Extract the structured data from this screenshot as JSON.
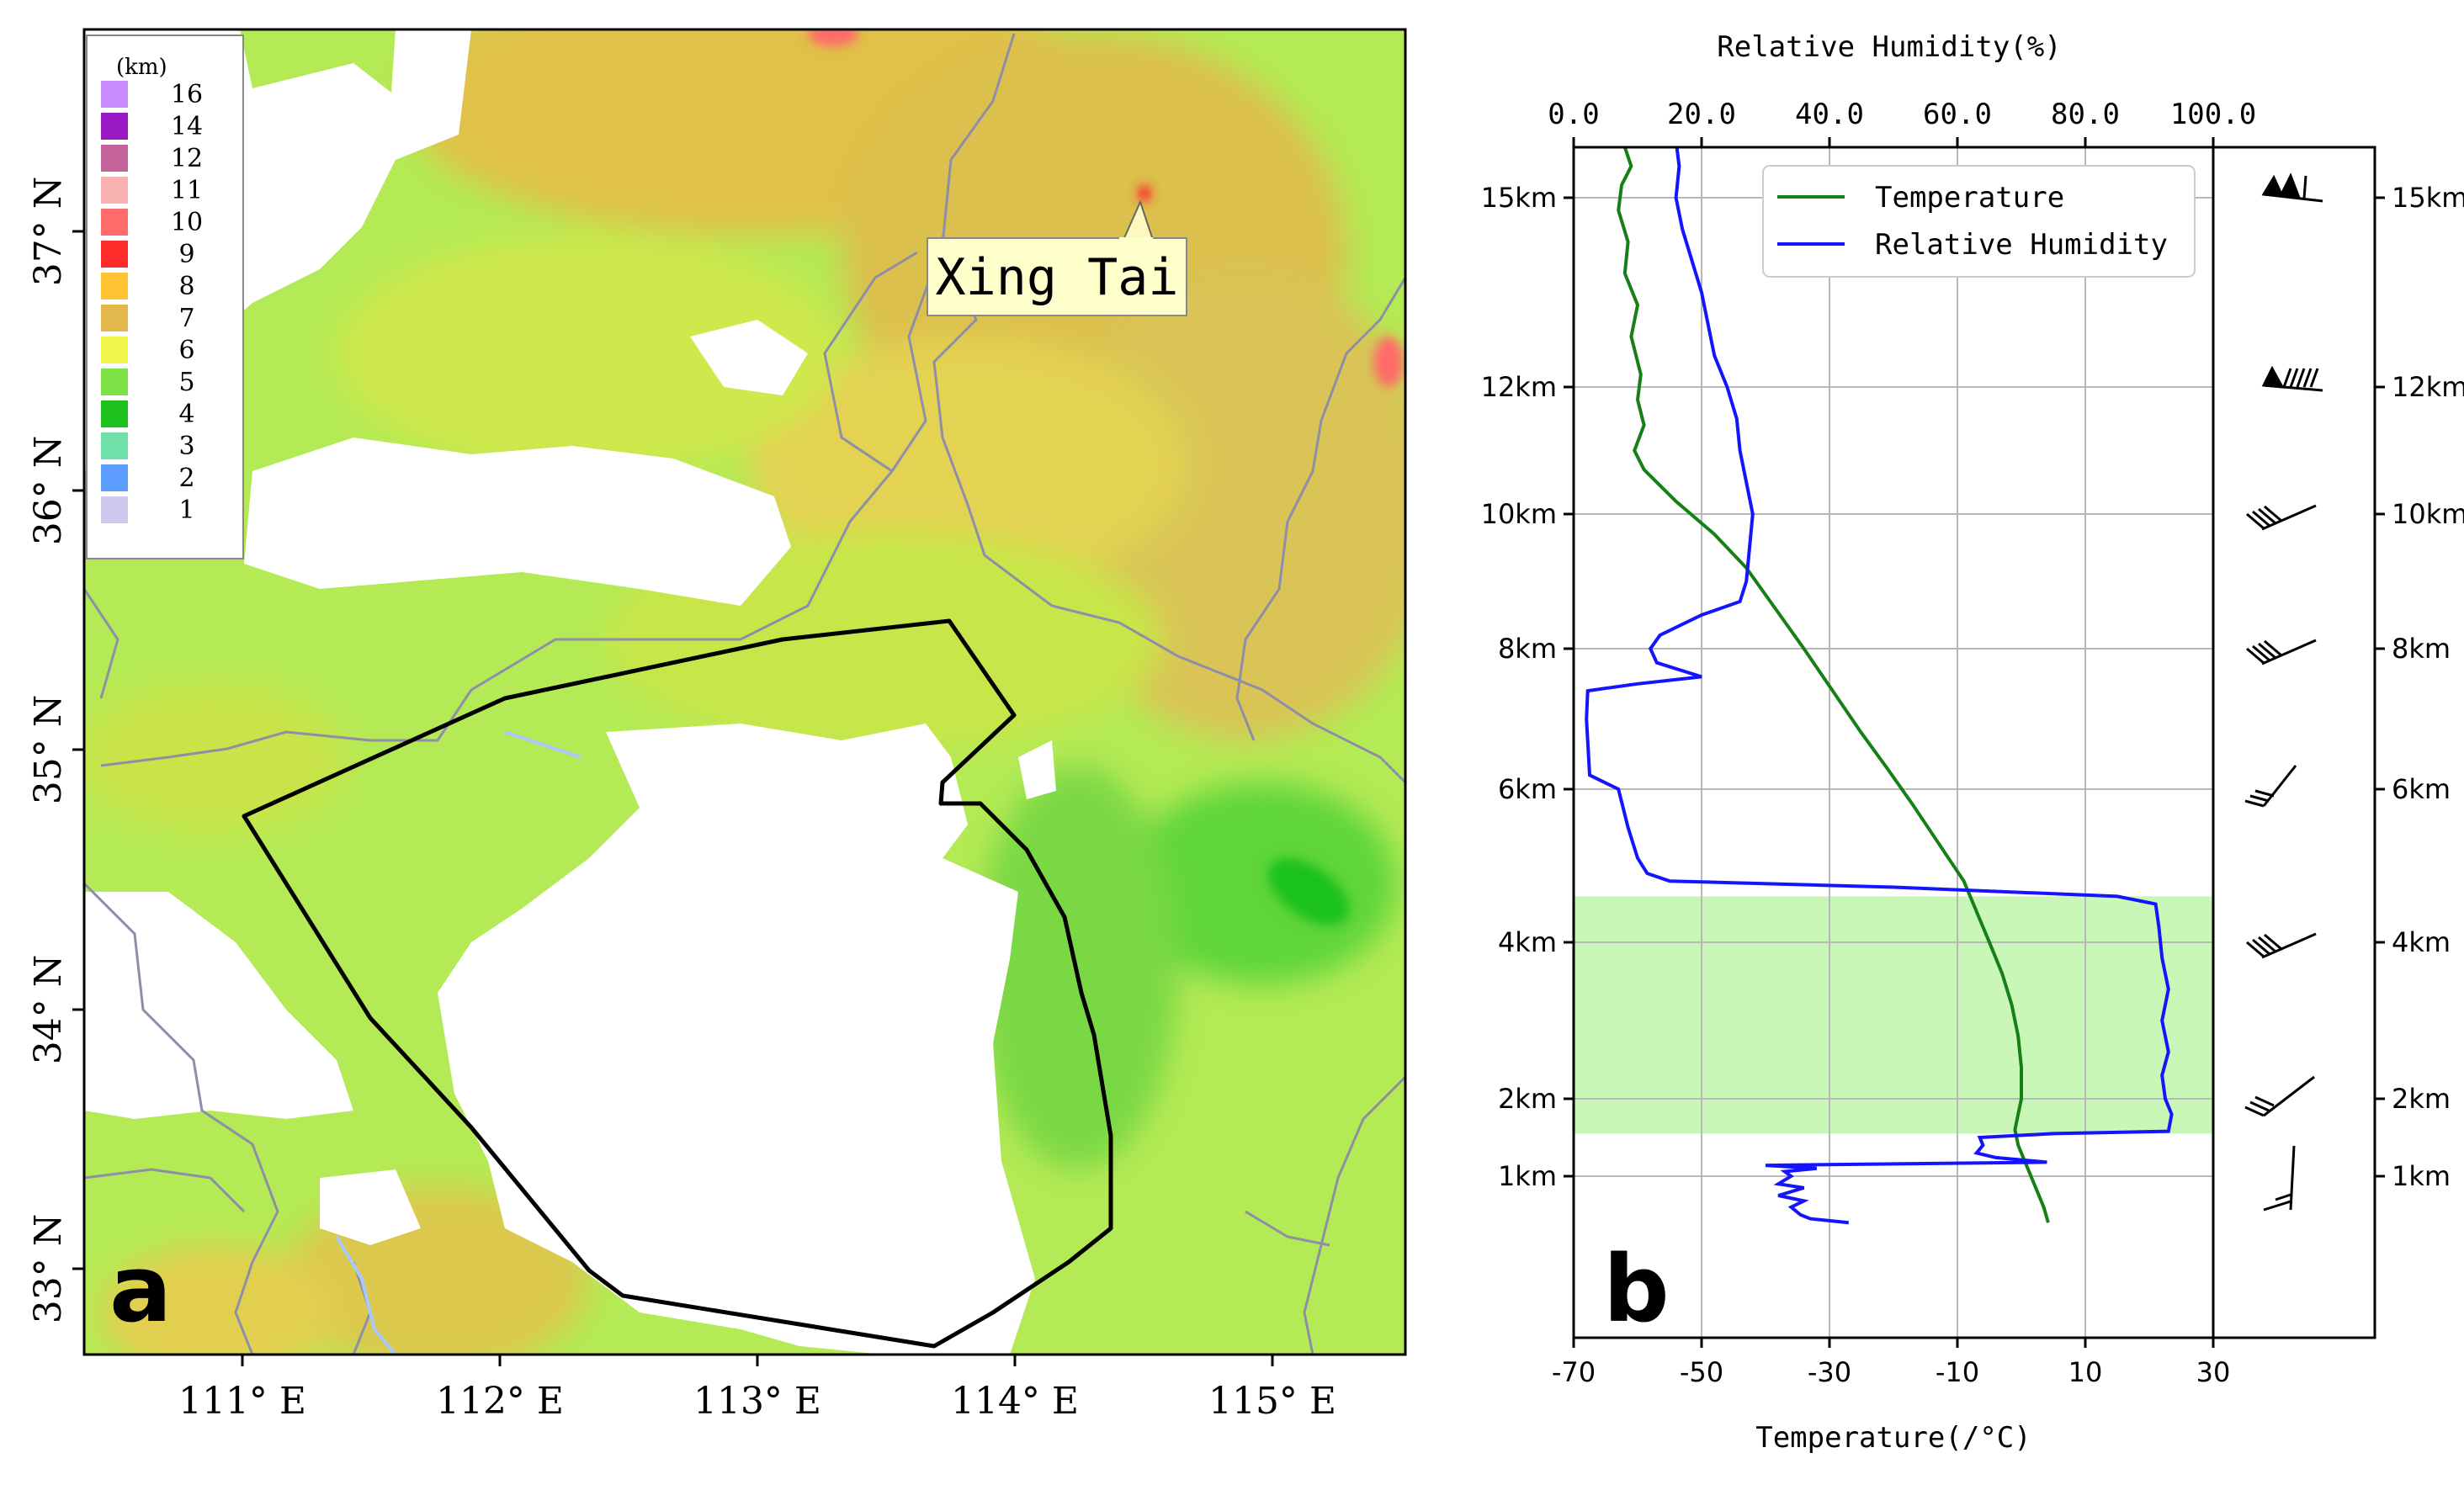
{
  "panel_a": {
    "label": "a",
    "legend": {
      "unit": "(km)",
      "entries": [
        {
          "label": "16",
          "color": "#c98bff"
        },
        {
          "label": "14",
          "color": "#9b19c4"
        },
        {
          "label": "12",
          "color": "#c5649b"
        },
        {
          "label": "11",
          "color": "#f7b1b1"
        },
        {
          "label": "10",
          "color": "#ff6b6b"
        },
        {
          "label": "9",
          "color": "#ff2a2a"
        },
        {
          "label": "8",
          "color": "#ffc433"
        },
        {
          "label": "7",
          "color": "#e2b84c"
        },
        {
          "label": "6",
          "color": "#f0f54a"
        },
        {
          "label": "5",
          "color": "#7ee145"
        },
        {
          "label": "4",
          "color": "#1ec21e"
        },
        {
          "label": "3",
          "color": "#6fe0a8"
        },
        {
          "label": "2",
          "color": "#5c9dff"
        },
        {
          "label": "1",
          "color": "#cfc9f0"
        }
      ]
    },
    "xticks": [
      "111° E",
      "112° E",
      "113° E",
      "114° E",
      "115° E"
    ],
    "yticks": [
      "37° N",
      "36° N",
      "35° N",
      "34° N",
      "33° N"
    ],
    "annotation": "Xing Tai"
  },
  "chart_data": {
    "type": "line",
    "label": "b",
    "top_axis": {
      "label": "Relative Humidity(%)",
      "range": [
        0,
        100
      ],
      "ticks": [
        "0.0",
        "20.0",
        "40.0",
        "60.0",
        "80.0",
        "100.0"
      ]
    },
    "bottom_axis": {
      "label": "Temperature(/°C)",
      "range": [
        -70,
        30
      ],
      "ticks": [
        "-70",
        "-50",
        "-30",
        "-10",
        "10",
        "30"
      ]
    },
    "height_ticks": [
      "15km",
      "12km",
      "10km",
      "8km",
      "6km",
      "4km",
      "2km",
      "1km"
    ],
    "height_tick_values_km": [
      15,
      12,
      10,
      8,
      6,
      4,
      2,
      1
    ],
    "series": [
      {
        "name": "Temperature",
        "color": "#168016",
        "points": [
          [
            4.2,
            0.4
          ],
          [
            3.5,
            0.6
          ],
          [
            2.5,
            0.8
          ],
          [
            1.5,
            1.0
          ],
          [
            0.5,
            1.2
          ],
          [
            -0.5,
            1.4
          ],
          [
            -1.0,
            1.6
          ],
          [
            -0.5,
            1.8
          ],
          [
            0.0,
            2.0
          ],
          [
            0.0,
            2.4
          ],
          [
            -0.5,
            2.8
          ],
          [
            -1.5,
            3.2
          ],
          [
            -3.0,
            3.6
          ],
          [
            -5.0,
            4.0
          ],
          [
            -7.0,
            4.4
          ],
          [
            -9.0,
            4.8
          ],
          [
            -13.0,
            5.3
          ],
          [
            -17.0,
            5.8
          ],
          [
            -21.0,
            6.3
          ],
          [
            -25.0,
            6.8
          ],
          [
            -29.5,
            7.4
          ],
          [
            -34.0,
            8.0
          ],
          [
            -38.5,
            8.6
          ],
          [
            -43.0,
            9.2
          ],
          [
            -48.0,
            9.7
          ],
          [
            -54.0,
            10.2
          ],
          [
            -59.0,
            10.7
          ],
          [
            -60.5,
            11.0
          ],
          [
            -59.0,
            11.4
          ],
          [
            -60.0,
            11.8
          ],
          [
            -59.5,
            12.2
          ],
          [
            -61.0,
            12.8
          ],
          [
            -60.0,
            13.3
          ],
          [
            -62.0,
            13.8
          ],
          [
            -61.5,
            14.3
          ],
          [
            -63.0,
            14.8
          ],
          [
            -62.5,
            15.2
          ],
          [
            -61.0,
            15.5
          ],
          [
            -62.0,
            15.8
          ]
        ]
      },
      {
        "name": "Relative Humidity",
        "color": "#1414ff",
        "points": [
          [
            43.0,
            0.4
          ],
          [
            37.0,
            0.45
          ],
          [
            35.5,
            0.5
          ],
          [
            34.0,
            0.6
          ],
          [
            36.0,
            0.68
          ],
          [
            32.0,
            0.75
          ],
          [
            36.0,
            0.85
          ],
          [
            32.0,
            0.9
          ],
          [
            34.0,
            1.0
          ],
          [
            33.0,
            1.06
          ],
          [
            38.0,
            1.1
          ],
          [
            30.0,
            1.14
          ],
          [
            74.0,
            1.18
          ],
          [
            66.0,
            1.24
          ],
          [
            63.0,
            1.3
          ],
          [
            64.0,
            1.4
          ],
          [
            63.5,
            1.5
          ],
          [
            75.0,
            1.55
          ],
          [
            93.0,
            1.58
          ],
          [
            93.5,
            1.8
          ],
          [
            92.5,
            2.0
          ],
          [
            92.0,
            2.3
          ],
          [
            93.0,
            2.6
          ],
          [
            92.0,
            3.0
          ],
          [
            93.0,
            3.4
          ],
          [
            92.0,
            3.8
          ],
          [
            91.5,
            4.2
          ],
          [
            91.0,
            4.5
          ],
          [
            85.0,
            4.6
          ],
          [
            50.0,
            4.72
          ],
          [
            15.0,
            4.8
          ],
          [
            11.5,
            4.9
          ],
          [
            10.0,
            5.1
          ],
          [
            8.5,
            5.5
          ],
          [
            7.0,
            6.0
          ],
          [
            2.5,
            6.2
          ],
          [
            2.0,
            7.0
          ],
          [
            2.2,
            7.4
          ],
          [
            10.0,
            7.5
          ],
          [
            20.0,
            7.6
          ],
          [
            13.0,
            7.8
          ],
          [
            12.0,
            8.0
          ],
          [
            13.5,
            8.2
          ],
          [
            20.0,
            8.5
          ],
          [
            26.0,
            8.7
          ],
          [
            27.0,
            9.0
          ],
          [
            27.5,
            9.5
          ],
          [
            28.0,
            10.0
          ],
          [
            27.0,
            10.5
          ],
          [
            26.0,
            11.0
          ],
          [
            25.5,
            11.5
          ],
          [
            24.0,
            12.0
          ],
          [
            22.0,
            12.5
          ],
          [
            21.0,
            13.0
          ],
          [
            20.0,
            13.5
          ],
          [
            18.5,
            14.0
          ],
          [
            17.0,
            14.5
          ],
          [
            16.0,
            15.0
          ],
          [
            16.5,
            15.5
          ],
          [
            16.0,
            15.9
          ]
        ]
      }
    ],
    "shaded_band_km": [
      1.55,
      4.6
    ],
    "legend_position": "top-right",
    "grid": true,
    "wind_barb_heights": [
      "15km",
      "12km",
      "10km",
      "8km",
      "6km",
      "4km",
      "2km",
      "1km"
    ]
  }
}
